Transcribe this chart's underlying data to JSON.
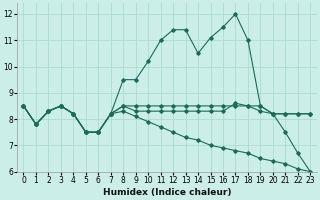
{
  "xlabel": "Humidex (Indice chaleur)",
  "background_color": "#cceee8",
  "grid_color": "#aaddcc",
  "line_color": "#1a6b5a",
  "xlim": [
    -0.5,
    23.5
  ],
  "ylim": [
    6,
    12.4
  ],
  "xticks": [
    0,
    1,
    2,
    3,
    4,
    5,
    6,
    7,
    8,
    9,
    10,
    11,
    12,
    13,
    14,
    15,
    16,
    17,
    18,
    19,
    20,
    21,
    22,
    23
  ],
  "yticks": [
    6,
    7,
    8,
    9,
    10,
    11,
    12
  ],
  "lines": [
    {
      "x": [
        0,
        1,
        2,
        3,
        4,
        5,
        6,
        7,
        8,
        9,
        10,
        11,
        12,
        13,
        14,
        15,
        16,
        17,
        18,
        19,
        20,
        21,
        22,
        23
      ],
      "y": [
        8.5,
        7.8,
        8.3,
        8.5,
        8.2,
        7.5,
        7.5,
        8.2,
        9.5,
        9.5,
        10.2,
        11.0,
        11.4,
        11.4,
        10.5,
        11.1,
        11.5,
        12.0,
        11.0,
        8.5,
        8.2,
        7.5,
        6.7,
        6.0
      ]
    },
    {
      "x": [
        0,
        1,
        2,
        3,
        4,
        5,
        6,
        7,
        8,
        9,
        10,
        11,
        12,
        13,
        14,
        15,
        16,
        17,
        18,
        19,
        20,
        21,
        22,
        23
      ],
      "y": [
        8.5,
        7.8,
        8.3,
        8.5,
        8.2,
        7.5,
        7.5,
        8.2,
        8.5,
        8.5,
        8.5,
        8.5,
        8.5,
        8.5,
        8.5,
        8.5,
        8.5,
        8.5,
        8.5,
        8.5,
        8.2,
        8.2,
        8.2,
        8.2
      ]
    },
    {
      "x": [
        0,
        1,
        2,
        3,
        4,
        5,
        6,
        7,
        8,
        9,
        10,
        11,
        12,
        13,
        14,
        15,
        16,
        17,
        18,
        19,
        20,
        21,
        22,
        23
      ],
      "y": [
        8.5,
        7.8,
        8.3,
        8.5,
        8.2,
        7.5,
        7.5,
        8.2,
        8.5,
        8.3,
        8.3,
        8.3,
        8.3,
        8.3,
        8.3,
        8.3,
        8.3,
        8.6,
        8.5,
        8.3,
        8.2,
        8.2,
        8.2,
        8.2
      ]
    },
    {
      "x": [
        0,
        1,
        2,
        3,
        4,
        5,
        6,
        7,
        8,
        9,
        10,
        11,
        12,
        13,
        14,
        15,
        16,
        17,
        18,
        19,
        20,
        21,
        22,
        23
      ],
      "y": [
        8.5,
        7.8,
        8.3,
        8.5,
        8.2,
        7.5,
        7.5,
        8.2,
        8.3,
        8.1,
        7.9,
        7.7,
        7.5,
        7.3,
        7.2,
        7.0,
        6.9,
        6.8,
        6.7,
        6.5,
        6.4,
        6.3,
        6.1,
        6.0
      ]
    }
  ]
}
